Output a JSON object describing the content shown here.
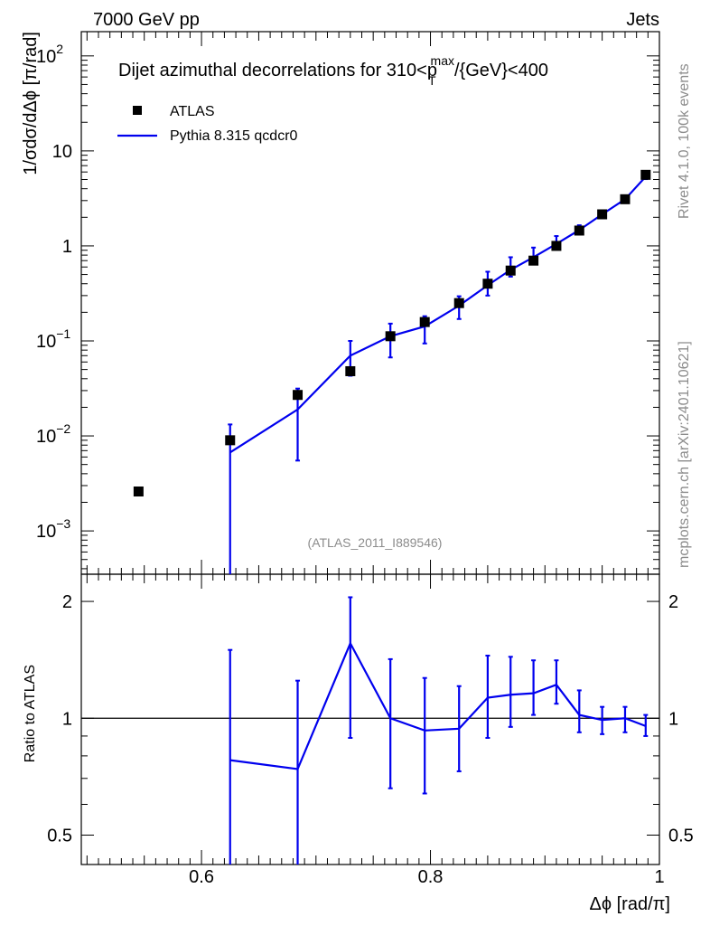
{
  "header": {
    "left": "7000 GeV pp",
    "right": "Jets"
  },
  "side_labels": {
    "rivet": "Rivet 4.1.0,  100k events",
    "mcplots": "mcplots.cern.ch [arXiv:2401.10621]"
  },
  "chart_data": {
    "type": "scatter",
    "title_main": "Dijet azimuthal decorrelations for 310<p",
    "title_sup": "max",
    "title_sub": "T",
    "title_rest": "/{GeV}<400",
    "analysis_id": "(ATLAS_2011_I889546)",
    "xlabel": "Δϕ [rad/π]",
    "ylabel": "1/σdσ/dΔϕ [π/rad]",
    "ratio_ylabel": "Ratio to ATLAS",
    "xlim": [
      0.495,
      1.0
    ],
    "ylim_main": [
      0.00035,
      180
    ],
    "ylim_ratio": [
      0.42,
      2.35
    ],
    "x_ticks": [
      {
        "value": 0.6,
        "label": "0.6"
      },
      {
        "value": 0.8,
        "label": "0.8"
      },
      {
        "value": 1.0,
        "label": "1"
      }
    ],
    "y_ticks_main": [
      {
        "value": 0.001,
        "base": "10",
        "exp": "−3"
      },
      {
        "value": 0.01,
        "base": "10",
        "exp": "−2"
      },
      {
        "value": 0.1,
        "base": "10",
        "exp": "−1"
      },
      {
        "value": 1,
        "base": "1",
        "exp": ""
      },
      {
        "value": 10,
        "base": "10",
        "exp": ""
      },
      {
        "value": 100,
        "base": "10",
        "exp": "2"
      }
    ],
    "y_ticks_ratio": [
      {
        "value": 0.5,
        "label": "0.5"
      },
      {
        "value": 1,
        "label": "1"
      },
      {
        "value": 2,
        "label": "2"
      }
    ],
    "legend": [
      {
        "name": "ATLAS",
        "style": "marker"
      },
      {
        "name": "Pythia 8.315 qcdcr0",
        "style": "line"
      }
    ],
    "colors": {
      "data": "#000000",
      "mc": "#0000ee"
    },
    "atlas": {
      "x": [
        0.545,
        0.625,
        0.684,
        0.73,
        0.765,
        0.795,
        0.825,
        0.85,
        0.87,
        0.89,
        0.91,
        0.93,
        0.95,
        0.97,
        0.988
      ],
      "y": [
        0.0026,
        0.009,
        0.027,
        0.048,
        0.112,
        0.158,
        0.25,
        0.4,
        0.55,
        0.7,
        1.0,
        1.45,
        2.15,
        3.1,
        5.6
      ]
    },
    "pythia": {
      "x": [
        0.625,
        0.684,
        0.73,
        0.765,
        0.795,
        0.825,
        0.85,
        0.87,
        0.89,
        0.91,
        0.93,
        0.95,
        0.97,
        0.988
      ],
      "y": [
        0.0067,
        0.019,
        0.07,
        0.112,
        0.142,
        0.235,
        0.385,
        0.56,
        0.76,
        1.05,
        1.47,
        2.15,
        3.1,
        5.35
      ],
      "yerr_low": [
        0.0067,
        0.0135,
        0.027,
        0.045,
        0.048,
        0.065,
        0.085,
        0.085,
        0.09,
        0.09,
        0.15,
        0.18,
        0.2,
        0.3
      ],
      "yerr_high": [
        0.0065,
        0.0125,
        0.03,
        0.04,
        0.04,
        0.06,
        0.15,
        0.2,
        0.2,
        0.22,
        0.18,
        0.2,
        0.25,
        0.35
      ]
    },
    "ratio": {
      "x": [
        0.625,
        0.684,
        0.73,
        0.765,
        0.795,
        0.825,
        0.85,
        0.87,
        0.89,
        0.91,
        0.93,
        0.95,
        0.97,
        0.988
      ],
      "y": [
        0.78,
        0.74,
        1.56,
        1.0,
        0.93,
        0.94,
        1.13,
        1.15,
        1.16,
        1.22,
        1.02,
        0.99,
        1.0,
        0.955
      ],
      "low": [
        0.3,
        0.3,
        0.89,
        0.66,
        0.64,
        0.73,
        0.89,
        0.95,
        1.02,
        1.09,
        0.92,
        0.91,
        0.92,
        0.9
      ],
      "high": [
        1.5,
        1.25,
        2.05,
        1.42,
        1.27,
        1.21,
        1.45,
        1.44,
        1.41,
        1.41,
        1.18,
        1.07,
        1.07,
        1.02
      ]
    }
  }
}
